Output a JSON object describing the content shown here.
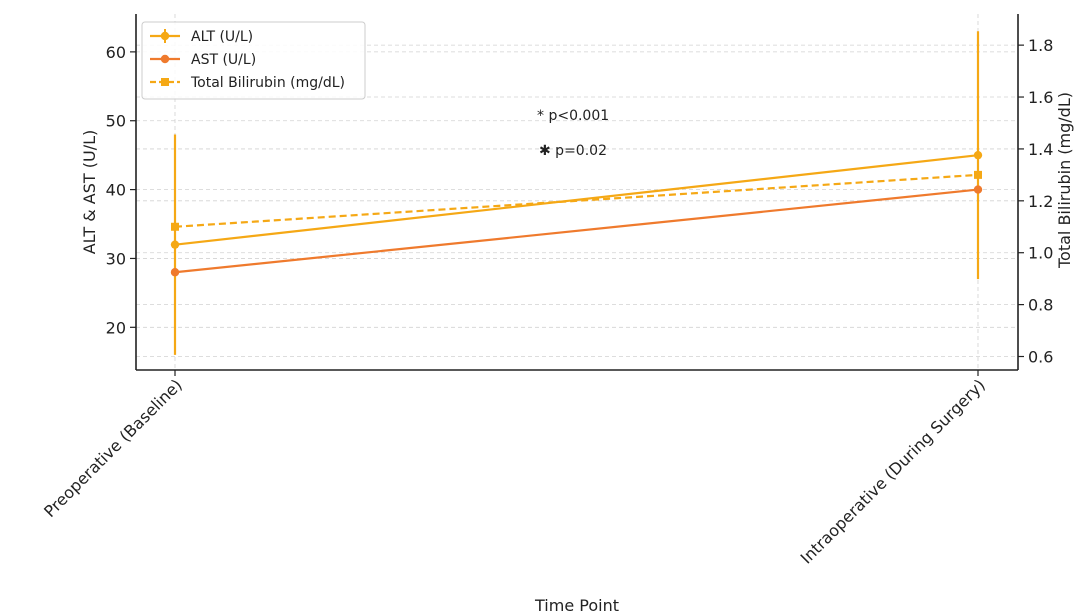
{
  "chart_data": {
    "type": "line",
    "categories": [
      "Preoperative (Baseline)",
      "Intraoperative (During Surgery)"
    ],
    "xlabel": "Time Point",
    "ylabel_left": "ALT & AST (U/L)",
    "ylabel_right": "Total Bilirubin (mg/dL)",
    "ylim_left": [
      13.8,
      65.5
    ],
    "ylim_right": [
      0.548,
      1.92
    ],
    "yticks_left": [
      "20",
      "30",
      "40",
      "50",
      "60"
    ],
    "yticks_right": [
      "0.6",
      "0.8",
      "1.0",
      "1.2",
      "1.4",
      "1.6",
      "1.8"
    ],
    "grid": true,
    "legend_position": "top-left",
    "series": [
      {
        "name": "ALT (U/L)",
        "axis": "left",
        "values": [
          32,
          45
        ],
        "error": [
          16,
          18
        ],
        "marker": "circle",
        "dash": false,
        "color": "#f5a815"
      },
      {
        "name": "AST (U/L)",
        "axis": "left",
        "values": [
          28,
          40
        ],
        "error": null,
        "marker": "circle",
        "dash": false,
        "color": "#ef7a2d"
      },
      {
        "name": "Total Bilirubin (mg/dL)",
        "axis": "right",
        "values": [
          1.1,
          1.3
        ],
        "error": null,
        "marker": "square",
        "dash": true,
        "color": "#f5a815"
      }
    ],
    "annotations": [
      "* p<0.001",
      "✱ p=0.02"
    ]
  }
}
